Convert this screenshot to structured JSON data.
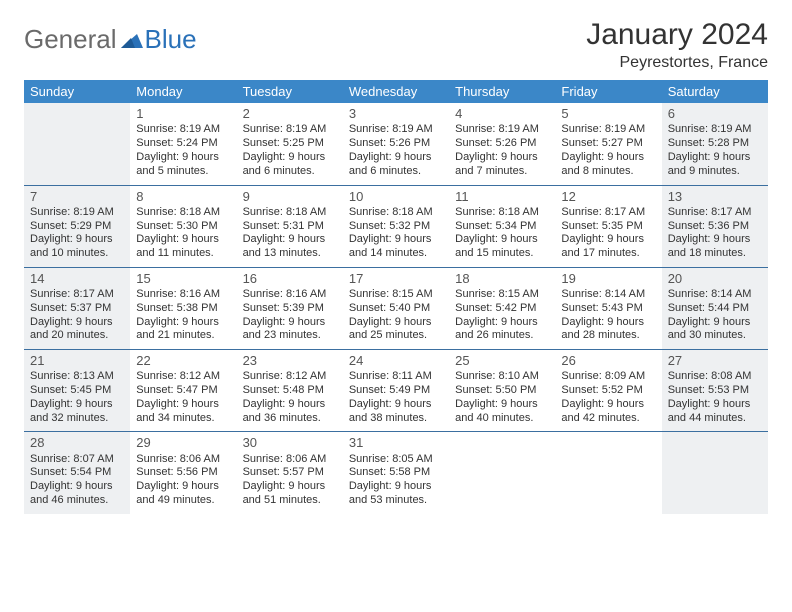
{
  "logo": {
    "text1": "General",
    "text2": "Blue"
  },
  "title": "January 2024",
  "location": "Peyrestortes, France",
  "colors": {
    "header_bg": "#3b87c8",
    "header_text": "#ffffff",
    "shaded_bg": "#eef0f2",
    "divider": "#3b6fa0",
    "logo_gray": "#6a6a6a",
    "logo_blue": "#2a71b8"
  },
  "day_headers": [
    "Sunday",
    "Monday",
    "Tuesday",
    "Wednesday",
    "Thursday",
    "Friday",
    "Saturday"
  ],
  "weeks": [
    [
      {
        "shaded": true
      },
      {
        "day": "1",
        "sunrise": "Sunrise: 8:19 AM",
        "sunset": "Sunset: 5:24 PM",
        "daylight": "Daylight: 9 hours and 5 minutes."
      },
      {
        "day": "2",
        "sunrise": "Sunrise: 8:19 AM",
        "sunset": "Sunset: 5:25 PM",
        "daylight": "Daylight: 9 hours and 6 minutes."
      },
      {
        "day": "3",
        "sunrise": "Sunrise: 8:19 AM",
        "sunset": "Sunset: 5:26 PM",
        "daylight": "Daylight: 9 hours and 6 minutes."
      },
      {
        "day": "4",
        "sunrise": "Sunrise: 8:19 AM",
        "sunset": "Sunset: 5:26 PM",
        "daylight": "Daylight: 9 hours and 7 minutes."
      },
      {
        "day": "5",
        "sunrise": "Sunrise: 8:19 AM",
        "sunset": "Sunset: 5:27 PM",
        "daylight": "Daylight: 9 hours and 8 minutes."
      },
      {
        "day": "6",
        "sunrise": "Sunrise: 8:19 AM",
        "sunset": "Sunset: 5:28 PM",
        "daylight": "Daylight: 9 hours and 9 minutes.",
        "shaded": true
      }
    ],
    [
      {
        "day": "7",
        "sunrise": "Sunrise: 8:19 AM",
        "sunset": "Sunset: 5:29 PM",
        "daylight": "Daylight: 9 hours and 10 minutes.",
        "shaded": true
      },
      {
        "day": "8",
        "sunrise": "Sunrise: 8:18 AM",
        "sunset": "Sunset: 5:30 PM",
        "daylight": "Daylight: 9 hours and 11 minutes."
      },
      {
        "day": "9",
        "sunrise": "Sunrise: 8:18 AM",
        "sunset": "Sunset: 5:31 PM",
        "daylight": "Daylight: 9 hours and 13 minutes."
      },
      {
        "day": "10",
        "sunrise": "Sunrise: 8:18 AM",
        "sunset": "Sunset: 5:32 PM",
        "daylight": "Daylight: 9 hours and 14 minutes."
      },
      {
        "day": "11",
        "sunrise": "Sunrise: 8:18 AM",
        "sunset": "Sunset: 5:34 PM",
        "daylight": "Daylight: 9 hours and 15 minutes."
      },
      {
        "day": "12",
        "sunrise": "Sunrise: 8:17 AM",
        "sunset": "Sunset: 5:35 PM",
        "daylight": "Daylight: 9 hours and 17 minutes."
      },
      {
        "day": "13",
        "sunrise": "Sunrise: 8:17 AM",
        "sunset": "Sunset: 5:36 PM",
        "daylight": "Daylight: 9 hours and 18 minutes.",
        "shaded": true
      }
    ],
    [
      {
        "day": "14",
        "sunrise": "Sunrise: 8:17 AM",
        "sunset": "Sunset: 5:37 PM",
        "daylight": "Daylight: 9 hours and 20 minutes.",
        "shaded": true
      },
      {
        "day": "15",
        "sunrise": "Sunrise: 8:16 AM",
        "sunset": "Sunset: 5:38 PM",
        "daylight": "Daylight: 9 hours and 21 minutes."
      },
      {
        "day": "16",
        "sunrise": "Sunrise: 8:16 AM",
        "sunset": "Sunset: 5:39 PM",
        "daylight": "Daylight: 9 hours and 23 minutes."
      },
      {
        "day": "17",
        "sunrise": "Sunrise: 8:15 AM",
        "sunset": "Sunset: 5:40 PM",
        "daylight": "Daylight: 9 hours and 25 minutes."
      },
      {
        "day": "18",
        "sunrise": "Sunrise: 8:15 AM",
        "sunset": "Sunset: 5:42 PM",
        "daylight": "Daylight: 9 hours and 26 minutes."
      },
      {
        "day": "19",
        "sunrise": "Sunrise: 8:14 AM",
        "sunset": "Sunset: 5:43 PM",
        "daylight": "Daylight: 9 hours and 28 minutes."
      },
      {
        "day": "20",
        "sunrise": "Sunrise: 8:14 AM",
        "sunset": "Sunset: 5:44 PM",
        "daylight": "Daylight: 9 hours and 30 minutes.",
        "shaded": true
      }
    ],
    [
      {
        "day": "21",
        "sunrise": "Sunrise: 8:13 AM",
        "sunset": "Sunset: 5:45 PM",
        "daylight": "Daylight: 9 hours and 32 minutes.",
        "shaded": true
      },
      {
        "day": "22",
        "sunrise": "Sunrise: 8:12 AM",
        "sunset": "Sunset: 5:47 PM",
        "daylight": "Daylight: 9 hours and 34 minutes."
      },
      {
        "day": "23",
        "sunrise": "Sunrise: 8:12 AM",
        "sunset": "Sunset: 5:48 PM",
        "daylight": "Daylight: 9 hours and 36 minutes."
      },
      {
        "day": "24",
        "sunrise": "Sunrise: 8:11 AM",
        "sunset": "Sunset: 5:49 PM",
        "daylight": "Daylight: 9 hours and 38 minutes."
      },
      {
        "day": "25",
        "sunrise": "Sunrise: 8:10 AM",
        "sunset": "Sunset: 5:50 PM",
        "daylight": "Daylight: 9 hours and 40 minutes."
      },
      {
        "day": "26",
        "sunrise": "Sunrise: 8:09 AM",
        "sunset": "Sunset: 5:52 PM",
        "daylight": "Daylight: 9 hours and 42 minutes."
      },
      {
        "day": "27",
        "sunrise": "Sunrise: 8:08 AM",
        "sunset": "Sunset: 5:53 PM",
        "daylight": "Daylight: 9 hours and 44 minutes.",
        "shaded": true
      }
    ],
    [
      {
        "day": "28",
        "sunrise": "Sunrise: 8:07 AM",
        "sunset": "Sunset: 5:54 PM",
        "daylight": "Daylight: 9 hours and 46 minutes.",
        "shaded": true
      },
      {
        "day": "29",
        "sunrise": "Sunrise: 8:06 AM",
        "sunset": "Sunset: 5:56 PM",
        "daylight": "Daylight: 9 hours and 49 minutes."
      },
      {
        "day": "30",
        "sunrise": "Sunrise: 8:06 AM",
        "sunset": "Sunset: 5:57 PM",
        "daylight": "Daylight: 9 hours and 51 minutes."
      },
      {
        "day": "31",
        "sunrise": "Sunrise: 8:05 AM",
        "sunset": "Sunset: 5:58 PM",
        "daylight": "Daylight: 9 hours and 53 minutes."
      },
      {},
      {},
      {
        "shaded": true
      }
    ]
  ]
}
